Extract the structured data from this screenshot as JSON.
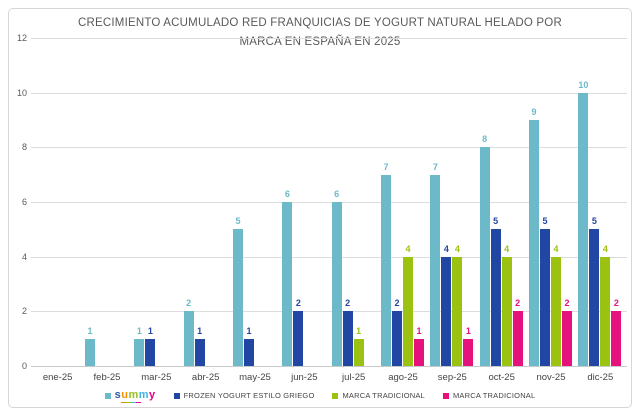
{
  "chart_data": {
    "type": "bar",
    "title": "CRECIMIENTO ACUMULADO RED FRANQUICIAS DE YOGURT NATURAL HELADO POR MARCA EN ESPAÑA EN 2025",
    "categories": [
      "ene-25",
      "feb-25",
      "mar-25",
      "abr-25",
      "may-25",
      "jun-25",
      "jul-25",
      "ago-25",
      "sep-25",
      "oct-25",
      "nov-25",
      "dic-25"
    ],
    "series": [
      {
        "name": "summy",
        "color": "#6CB9C9",
        "values": [
          0,
          1,
          1,
          2,
          5,
          6,
          6,
          7,
          7,
          8,
          9,
          10
        ]
      },
      {
        "name": "FROZEN YOGURT ESTILO GRIEGO",
        "color": "#2246A3",
        "values": [
          0,
          0,
          1,
          1,
          1,
          2,
          2,
          2,
          4,
          5,
          5,
          5
        ]
      },
      {
        "name": "MARCA TRADICIONAL",
        "color": "#9CC211",
        "values": [
          0,
          0,
          0,
          0,
          0,
          0,
          1,
          4,
          4,
          4,
          4,
          4
        ]
      },
      {
        "name": "MARCA TRADICIONAL",
        "color": "#E5127E",
        "values": [
          0,
          0,
          0,
          0,
          0,
          0,
          0,
          1,
          1,
          2,
          2,
          2
        ]
      }
    ],
    "ylim": [
      0,
      12
    ],
    "yticks": [
      0,
      2,
      4,
      6,
      8,
      10,
      12
    ],
    "grid": true,
    "legend_position": "bottom",
    "data_labels": true
  },
  "legend": {
    "items": [
      {
        "type": "logo",
        "marker_color": "#6CB9C9",
        "label": "summy"
      },
      {
        "type": "text",
        "marker_color": "#2246A3",
        "label": "FROZEN YOGURT ESTILO GRIEGO"
      },
      {
        "type": "text",
        "marker_color": "#9CC211",
        "label": "MARCA TRADICIONAL"
      },
      {
        "type": "text",
        "marker_color": "#E5127E",
        "label": "MARCA TRADICIONAL"
      }
    ]
  },
  "logo": {
    "brand": "summy",
    "letters": [
      {
        "char": "s",
        "color": "#2E58A7"
      },
      {
        "char": "u",
        "color": "#F39200"
      },
      {
        "char": "m",
        "color": "#95C11F"
      },
      {
        "char": "m",
        "color": "#3FB4E5"
      },
      {
        "char": "y",
        "color": "#E6007E"
      }
    ],
    "underline_colors": [
      "#F39200",
      "#95C11F",
      "#3FB4E5",
      "#E6007E"
    ]
  },
  "colors": {
    "grid": "#dcdcdc",
    "axis_text": "#595959",
    "title_text": "#595959"
  }
}
